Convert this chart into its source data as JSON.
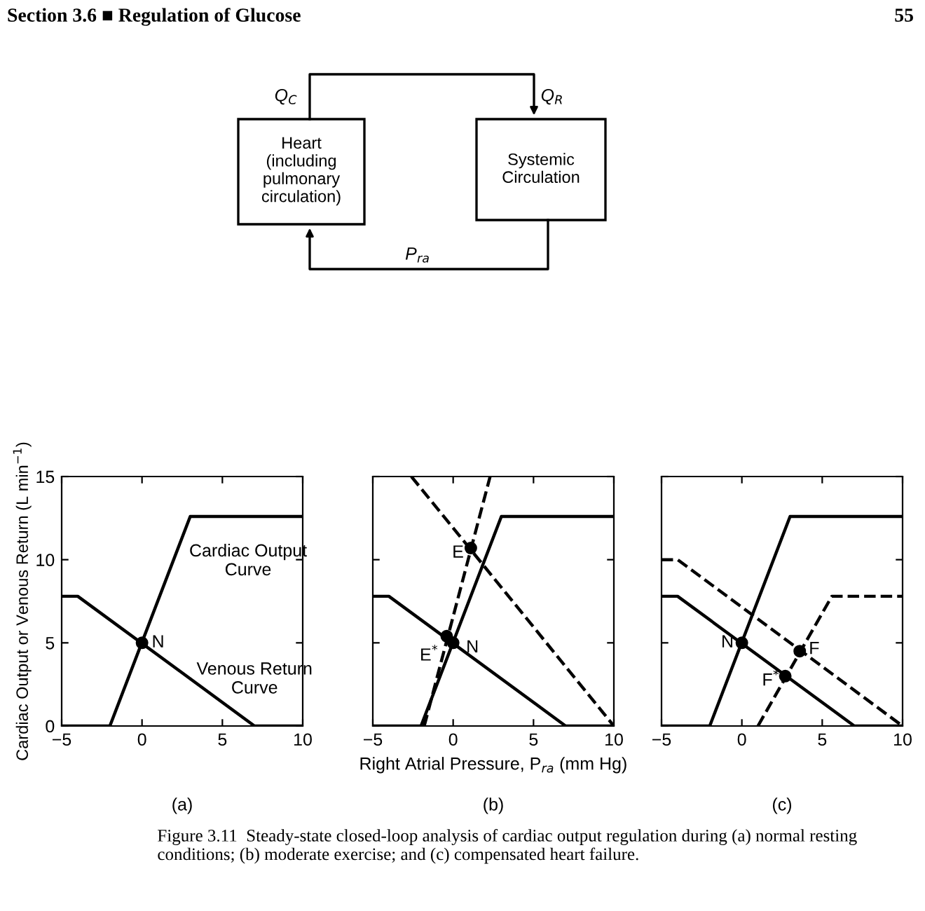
{
  "chart_data": [
    {
      "type": "other",
      "annotations": [
        "Section 3.6 ■ Regulation of Glucose",
        "55",
        "Heart\n(including\npulmonary\ncirculation)",
        "Systemic\nCirculation",
        "Q$_{C}$",
        "Q$_{R}$",
        "P$_{ra}$"
      ]
    },
    {
      "type": "line",
      "xlim": [
        -5,
        10
      ],
      "ylim": [
        0,
        15
      ],
      "xticks": [
        -5,
        0,
        5,
        10
      ],
      "yticks": [
        0,
        5,
        10,
        15
      ],
      "ylabel": "Cardiac Output or Venous Return (L min$^{−1}$)",
      "series": [
        {
          "type": "line",
          "x": [
            -5,
            -2,
            3,
            10
          ],
          "values": [
            0,
            0,
            12.6,
            12.6
          ],
          "color": "#000000",
          "line_style": "solid"
        },
        {
          "type": "line",
          "x": [
            -5,
            -4,
            7,
            10
          ],
          "values": [
            7.8,
            7.8,
            0,
            0
          ],
          "color": "#000000",
          "line_style": "solid"
        },
        {
          "type": "scatter",
          "x": [
            0
          ],
          "values": [
            5
          ],
          "color": "#000000",
          "marker": "circle"
        }
      ],
      "annotations": [
        "Cardiac Output\nCurve",
        "Venous Return\nCurve",
        "N",
        "(a)"
      ]
    },
    {
      "type": "line",
      "xlim": [
        -5,
        10
      ],
      "ylim": [
        0,
        15
      ],
      "xticks": [
        -5,
        0,
        5,
        10
      ],
      "yticks": [
        0,
        5,
        10,
        15
      ],
      "tick_labels": "x",
      "xlabel": "Right Atrial Pressure, P$_{ra}$ (mm Hg)",
      "series": [
        {
          "type": "line",
          "x": [
            -5,
            -2,
            3,
            10
          ],
          "values": [
            0,
            0,
            12.6,
            12.6
          ],
          "color": "#000000",
          "line_style": "solid"
        },
        {
          "type": "line",
          "x": [
            -5,
            -4,
            7,
            10
          ],
          "values": [
            7.8,
            7.8,
            0,
            0
          ],
          "color": "#000000",
          "line_style": "solid"
        },
        {
          "type": "line",
          "x": [
            -1.8,
            2.3
          ],
          "values": [
            0,
            15
          ],
          "color": "#000000",
          "line_style": "dashed"
        },
        {
          "type": "line",
          "x": [
            -2.6,
            10
          ],
          "values": [
            15,
            0
          ],
          "color": "#000000",
          "line_style": "dashed"
        },
        {
          "type": "scatter",
          "x": [
            0,
            -0.4,
            1.1
          ],
          "values": [
            5,
            5.4,
            10.7
          ],
          "color": "#000000",
          "marker": "circle"
        }
      ],
      "annotations": [
        "E",
        "E$^{*}$",
        "N",
        "(b)",
        "Figure 3.11  Steady-state closed-loop analysis of cardiac output regulation during (a) normal resting conditions; (b) moderate exercise; and (c) compensated heart failure."
      ]
    },
    {
      "type": "line",
      "xlim": [
        -5,
        10
      ],
      "ylim": [
        0,
        15
      ],
      "xticks": [
        -5,
        0,
        5,
        10
      ],
      "yticks": [
        0,
        5,
        10,
        15
      ],
      "tick_labels": "x",
      "series": [
        {
          "type": "line",
          "x": [
            -5,
            -2,
            3,
            10
          ],
          "values": [
            0,
            0,
            12.6,
            12.6
          ],
          "color": "#000000",
          "line_style": "solid"
        },
        {
          "type": "line",
          "x": [
            -5,
            -4,
            7,
            10
          ],
          "values": [
            7.8,
            7.8,
            0,
            0
          ],
          "color": "#000000",
          "line_style": "solid"
        },
        {
          "type": "line",
          "x": [
            1,
            5.6,
            10
          ],
          "values": [
            0,
            7.8,
            7.8
          ],
          "color": "#000000",
          "line_style": "dashed"
        },
        {
          "type": "line",
          "x": [
            -5,
            -4,
            10
          ],
          "values": [
            10,
            10,
            0
          ],
          "color": "#000000",
          "line_style": "dashed"
        },
        {
          "type": "scatter",
          "x": [
            0,
            3.6,
            2.7
          ],
          "values": [
            5,
            4.5,
            3.0
          ],
          "color": "#000000",
          "marker": "circle"
        }
      ],
      "annotations": [
        "N",
        "F",
        "F$^{*}$",
        "(c)"
      ]
    }
  ]
}
